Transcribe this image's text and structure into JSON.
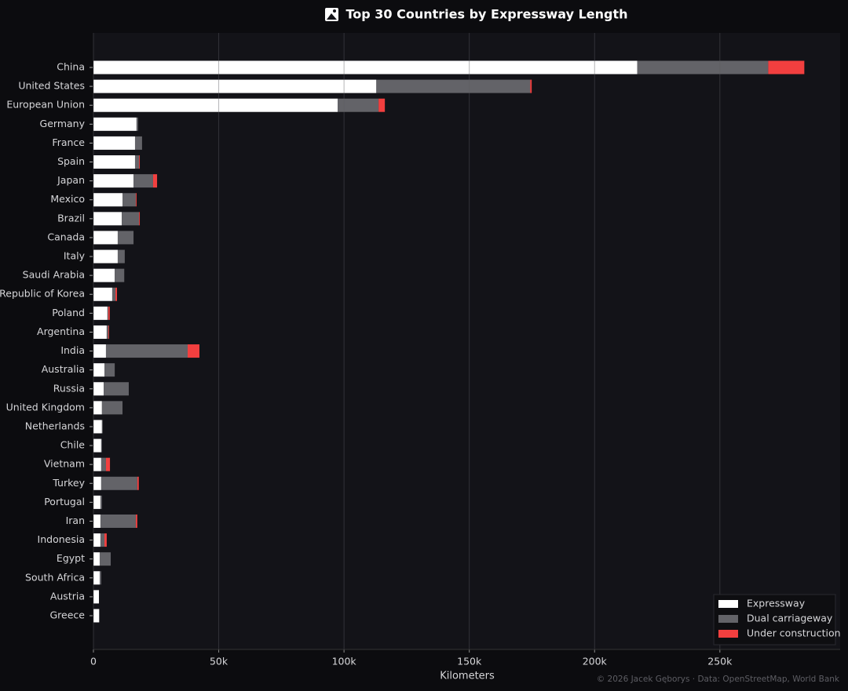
{
  "chart_data": {
    "type": "stacked-barh",
    "title": "Top 30 Countries by Expressway Length",
    "x_label": "Kilometers",
    "footer": "© 2026 Jacek Gęborys  ·  Data: OpenStreetMap, World Bank",
    "categories": [
      "China",
      "United States",
      "European Union",
      "Germany",
      "France",
      "Spain",
      "Japan",
      "Mexico",
      "Brazil",
      "Canada",
      "Italy",
      "Saudi Arabia",
      "Republic of Korea",
      "Poland",
      "Argentina",
      "India",
      "Australia",
      "Russia",
      "United Kingdom",
      "Netherlands",
      "Chile",
      "Vietnam",
      "Turkey",
      "Portugal",
      "Iran",
      "Indonesia",
      "Egypt",
      "South Africa",
      "Austria",
      "Greece"
    ],
    "series": [
      {
        "name": "Expressway",
        "color": "#ffffff",
        "values": [
          217000,
          112900,
          97500,
          17200,
          16600,
          16600,
          16000,
          11600,
          11300,
          9700,
          9700,
          8500,
          7500,
          5600,
          5300,
          5000,
          4400,
          4100,
          3400,
          3400,
          3100,
          3100,
          3100,
          2800,
          2800,
          2800,
          2500,
          2500,
          2200,
          2200
        ]
      },
      {
        "name": "Dual carriageway",
        "color": "#636368",
        "values": [
          52300,
          61400,
          16300,
          600,
          2800,
          1600,
          7800,
          5300,
          6900,
          6300,
          2800,
          3800,
          1300,
          300,
          600,
          32600,
          4100,
          10000,
          8200,
          300,
          300,
          1900,
          14400,
          600,
          14100,
          1600,
          4400,
          600,
          0,
          300
        ]
      },
      {
        "name": "Under construction",
        "color": "#f23f3f",
        "values": [
          14400,
          600,
          2500,
          0,
          0,
          300,
          1600,
          300,
          300,
          0,
          0,
          0,
          600,
          600,
          300,
          4700,
          0,
          0,
          0,
          0,
          0,
          1600,
          600,
          0,
          600,
          900,
          0,
          0,
          0,
          0
        ]
      }
    ],
    "xlim": [
      0,
      298000
    ],
    "xticks": [
      0,
      {
        "value": 50000,
        "label": "50k"
      },
      {
        "value": 100000,
        "label": "100k"
      },
      {
        "value": 150000,
        "label": "150k"
      },
      {
        "value": 200000,
        "label": "200k"
      },
      {
        "value": 250000,
        "label": "250k"
      }
    ],
    "grid": true,
    "legend": "lower right"
  }
}
